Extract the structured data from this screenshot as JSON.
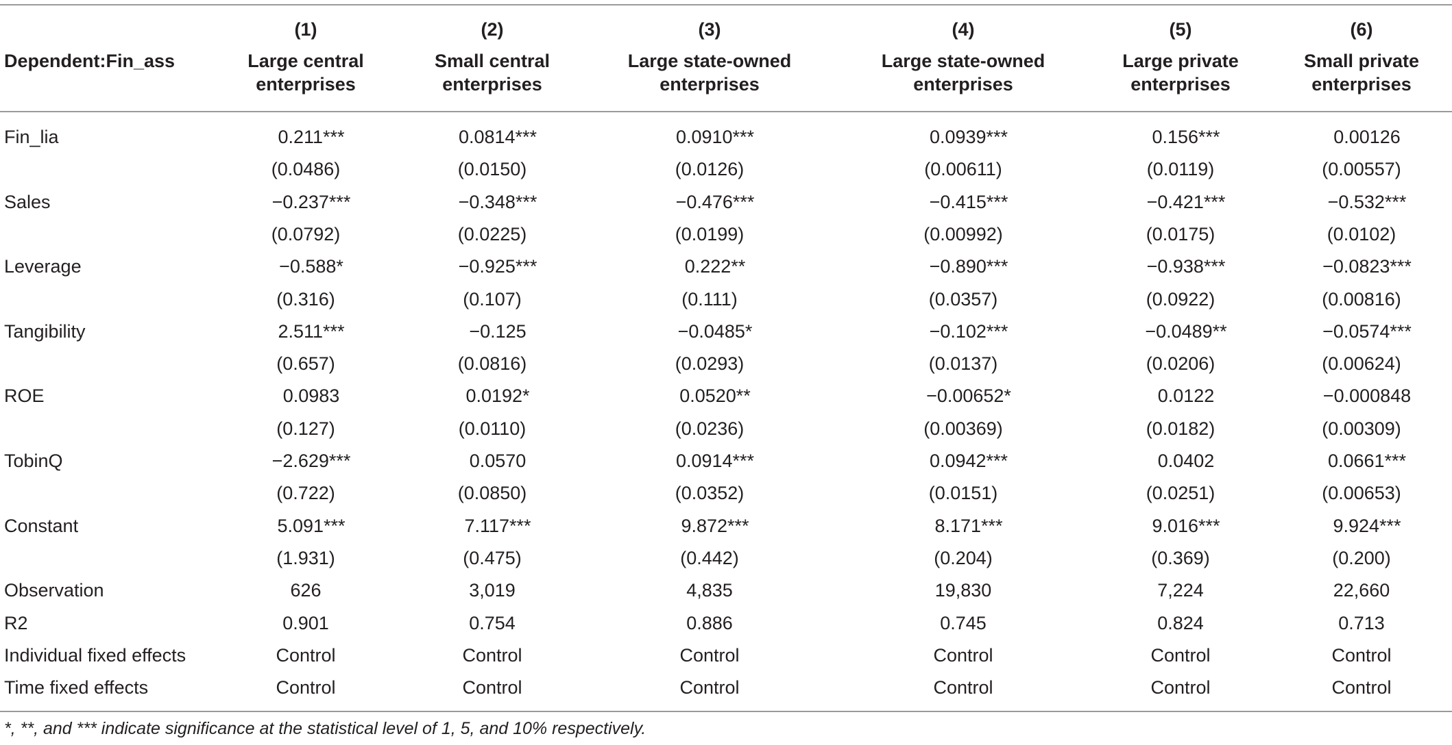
{
  "header": {
    "stub": "Dependent:Fin_ass",
    "columns": [
      {
        "number": "(1)",
        "title": "Large central enterprises"
      },
      {
        "number": "(2)",
        "title": "Small central enterprises"
      },
      {
        "number": "(3)",
        "title": "Large state-owned enterprises"
      },
      {
        "number": "(4)",
        "title": "Large state-owned enterprises"
      },
      {
        "number": "(5)",
        "title": "Large private enterprises"
      },
      {
        "number": "(6)",
        "title": "Small private enterprises"
      }
    ]
  },
  "variables": [
    {
      "label": "Fin_lia",
      "coefficients": [
        "0.211***",
        "0.0814***",
        "0.0910***",
        "0.0939***",
        "0.156***",
        "0.00126"
      ],
      "std_errors": [
        "(0.0486)",
        "(0.0150)",
        "(0.0126)",
        "(0.00611)",
        "(0.0119)",
        "(0.00557)"
      ]
    },
    {
      "label": "Sales",
      "coefficients": [
        "−0.237***",
        "−0.348***",
        "−0.476***",
        "−0.415***",
        "−0.421***",
        "−0.532***"
      ],
      "std_errors": [
        "(0.0792)",
        "(0.0225)",
        "(0.0199)",
        "(0.00992)",
        "(0.0175)",
        "(0.0102)"
      ]
    },
    {
      "label": "Leverage",
      "coefficients": [
        "−0.588*",
        "−0.925***",
        "0.222**",
        "−0.890***",
        "−0.938***",
        "−0.0823***"
      ],
      "std_errors": [
        "(0.316)",
        "(0.107)",
        "(0.111)",
        "(0.0357)",
        "(0.0922)",
        "(0.00816)"
      ]
    },
    {
      "label": "Tangibility",
      "coefficients": [
        "2.511***",
        "−0.125",
        "−0.0485*",
        "−0.102***",
        "−0.0489**",
        "−0.0574***"
      ],
      "std_errors": [
        "(0.657)",
        "(0.0816)",
        "(0.0293)",
        "(0.0137)",
        "(0.0206)",
        "(0.00624)"
      ]
    },
    {
      "label": "ROE",
      "coefficients": [
        "0.0983",
        "0.0192*",
        "0.0520**",
        "−0.00652*",
        "0.0122",
        "−0.000848"
      ],
      "std_errors": [
        "(0.127)",
        "(0.0110)",
        "(0.0236)",
        "(0.00369)",
        "(0.0182)",
        "(0.00309)"
      ]
    },
    {
      "label": "TobinQ",
      "coefficients": [
        "−2.629***",
        "0.0570",
        "0.0914***",
        "0.0942***",
        "0.0402",
        "0.0661***"
      ],
      "std_errors": [
        "(0.722)",
        "(0.0850)",
        "(0.0352)",
        "(0.0151)",
        "(0.0251)",
        "(0.00653)"
      ]
    },
    {
      "label": "Constant",
      "coefficients": [
        "5.091***",
        "7.117***",
        "9.872***",
        "8.171***",
        "9.016***",
        "9.924***"
      ],
      "std_errors": [
        "(1.931)",
        "(0.475)",
        "(0.442)",
        "(0.204)",
        "(0.369)",
        "(0.200)"
      ]
    }
  ],
  "stats": [
    {
      "label": "Observation",
      "values": [
        "626",
        "3,019",
        "4,835",
        "19,830",
        "7,224",
        "22,660"
      ]
    },
    {
      "label": "R2",
      "values": [
        "0.901",
        "0.754",
        "0.886",
        "0.745",
        "0.824",
        "0.713"
      ]
    },
    {
      "label": "Individual fixed effects",
      "values": [
        "Control",
        "Control",
        "Control",
        "Control",
        "Control",
        "Control"
      ]
    },
    {
      "label": "Time fixed effects",
      "values": [
        "Control",
        "Control",
        "Control",
        "Control",
        "Control",
        "Control"
      ]
    }
  ],
  "note": "*, **, and *** indicate significance at the statistical level of 1, 5, and 10% respectively."
}
